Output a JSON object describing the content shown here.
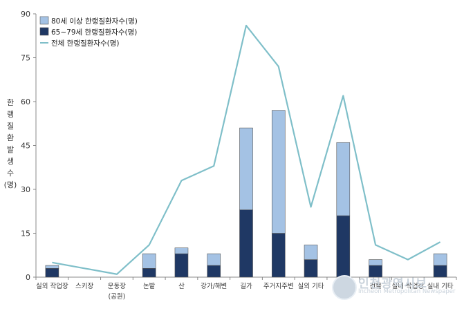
{
  "chart_data": {
    "type": "bar+line",
    "ylabel": "한랭질환발생수(명)",
    "ylim": [
      0,
      90
    ],
    "yticks": [
      0,
      15,
      30,
      45,
      60,
      75,
      90
    ],
    "categories": [
      "실외 작업장",
      "스키장",
      "운동장\n(공원)",
      "논밭",
      "산",
      "강가/해변",
      "길가",
      "주거지주변",
      "실외 기타",
      "집",
      "건물",
      "실내 작업장",
      "실내 기타"
    ],
    "series": [
      {
        "name": "80세 이상 한랭질환자수(명)",
        "type": "bar-stacked",
        "color": "#a4c2e4",
        "values": [
          1,
          0,
          0,
          5,
          2,
          4,
          28,
          42,
          5,
          25,
          2,
          0,
          4
        ]
      },
      {
        "name": "65~79세 한랭질환자수(명)",
        "type": "bar-stacked",
        "color": "#1f3864",
        "values": [
          3,
          0,
          0,
          3,
          8,
          4,
          23,
          15,
          6,
          21,
          4,
          0,
          4
        ]
      },
      {
        "name": "전체 한랭질환자수(명)",
        "type": "line",
        "color": "#7fbfc9",
        "values": [
          5,
          3,
          1,
          11,
          33,
          38,
          86,
          72,
          24,
          62,
          11,
          6,
          12
        ]
      }
    ],
    "legend_position": "top-left",
    "grid": false
  },
  "watermark": {
    "title": "인천광역시보",
    "subtitle": "Incheon Metropolitan Newspaper"
  }
}
